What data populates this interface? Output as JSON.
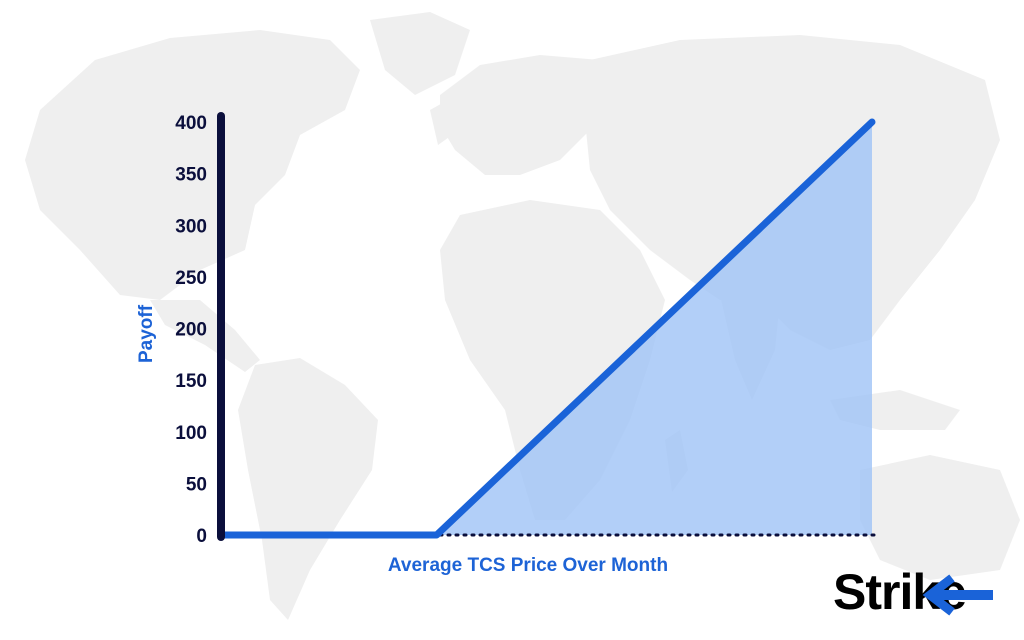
{
  "chart_data": {
    "type": "area",
    "series": [
      {
        "x": [
          0,
          210,
          640
        ],
        "values": [
          0,
          0,
          400
        ]
      }
    ],
    "ylim": [
      0,
      400
    ],
    "yticks": [
      0,
      50,
      100,
      150,
      200,
      250,
      300,
      350,
      400
    ],
    "xlim": [
      0,
      640
    ],
    "title": "",
    "xlabel": "Average TCS Price Over Month",
    "ylabel": "Payoff",
    "grid": false,
    "legend": "none"
  },
  "colors": {
    "line": "#1a63d8",
    "fill": "#9fc3f6",
    "axis": "#0b0f3c",
    "map": "#efefef",
    "logo_accent": "#1a63d8"
  },
  "logo": {
    "text": "Strike"
  },
  "background": {
    "image": "world-map"
  }
}
